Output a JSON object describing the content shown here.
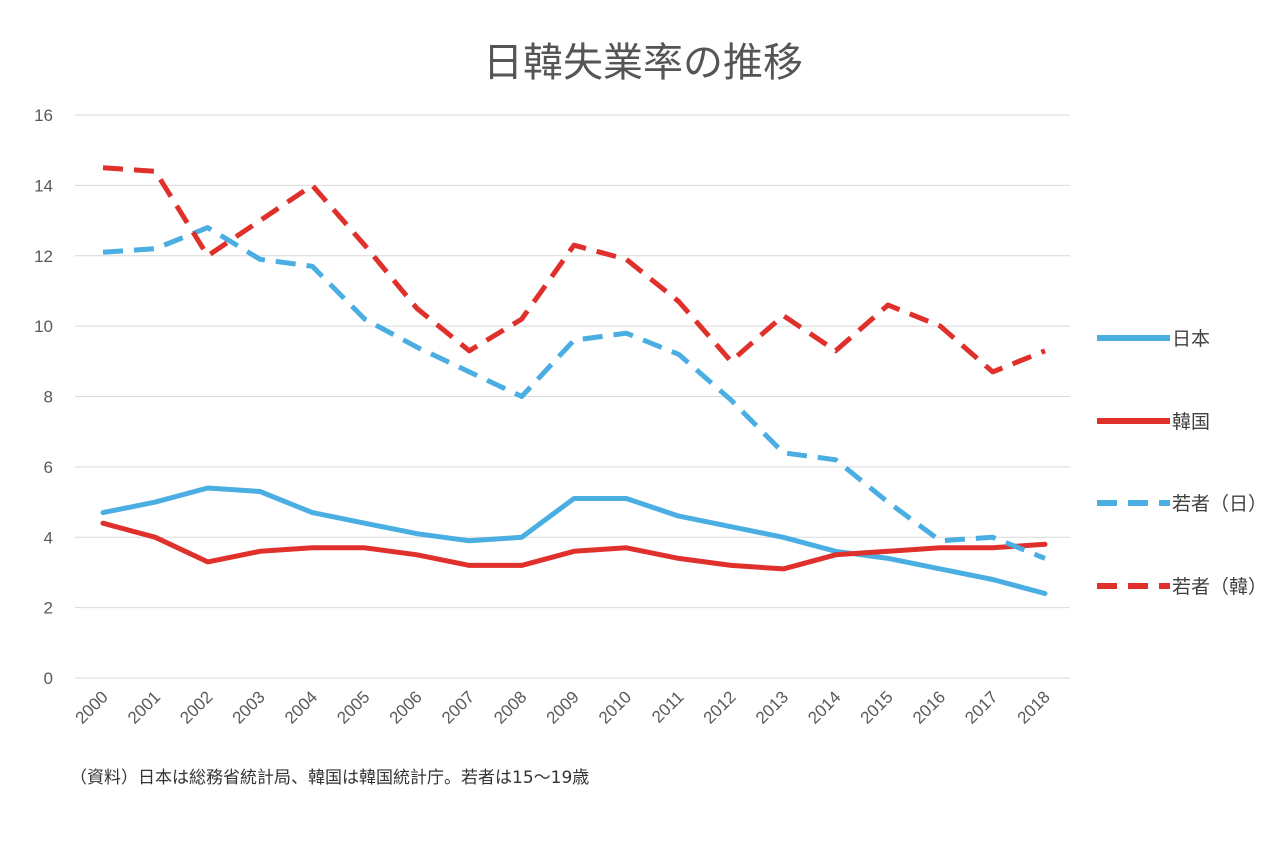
{
  "chart_data": {
    "type": "line",
    "title": "日韓失業率の推移",
    "xlabel": "",
    "ylabel": "",
    "ylim": [
      0,
      16
    ],
    "yticks": [
      0,
      2,
      4,
      6,
      8,
      10,
      12,
      14,
      16
    ],
    "grid": true,
    "legend_position": "right",
    "categories": [
      "2000",
      "2001",
      "2002",
      "2003",
      "2004",
      "2005",
      "2006",
      "2007",
      "2008",
      "2009",
      "2010",
      "2011",
      "2012",
      "2013",
      "2014",
      "2015",
      "2016",
      "2017",
      "2018"
    ],
    "series": [
      {
        "name": "日本",
        "color": "#4aaee3",
        "style": "solid",
        "values": [
          4.7,
          5.0,
          5.4,
          5.3,
          4.7,
          4.4,
          4.1,
          3.9,
          4.0,
          5.1,
          5.1,
          4.6,
          4.3,
          4.0,
          3.6,
          3.4,
          3.1,
          2.8,
          2.4
        ]
      },
      {
        "name": "韓国",
        "color": "#e0302b",
        "style": "solid",
        "values": [
          4.4,
          4.0,
          3.3,
          3.6,
          3.7,
          3.7,
          3.5,
          3.2,
          3.2,
          3.6,
          3.7,
          3.4,
          3.2,
          3.1,
          3.5,
          3.6,
          3.7,
          3.7,
          3.8
        ]
      },
      {
        "name": "若者（日）",
        "color": "#4aaee3",
        "style": "dashed",
        "values": [
          12.1,
          12.2,
          12.8,
          11.9,
          11.7,
          10.2,
          9.4,
          8.7,
          8.0,
          9.6,
          9.8,
          9.2,
          7.9,
          6.4,
          6.2,
          5.0,
          3.9,
          4.0,
          3.4
        ]
      },
      {
        "name": "若者（韓）",
        "color": "#e0302b",
        "style": "dashed",
        "values": [
          14.5,
          14.4,
          12.0,
          13.0,
          14.0,
          12.3,
          10.5,
          9.3,
          10.2,
          12.3,
          11.9,
          10.7,
          9.0,
          10.3,
          9.3,
          10.6,
          10.0,
          8.7,
          9.3
        ]
      }
    ],
    "note": "（資料）日本は総務省統計局、韓国は韓国統計庁。若者は15～19歳"
  }
}
